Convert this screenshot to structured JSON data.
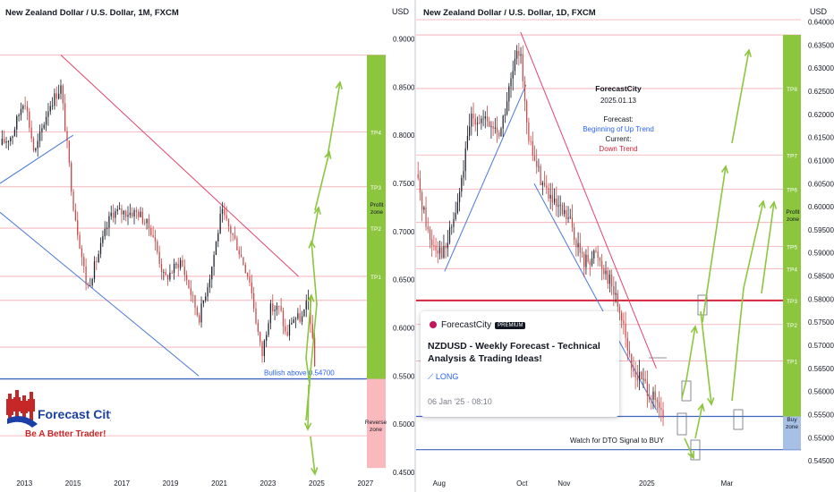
{
  "left_chart": {
    "title": "New Zealand Dollar / U.S. Dollar, 1M, FXCM",
    "currency": "USD",
    "y_ticks": [
      "0.90000",
      "0.85000",
      "0.80000",
      "0.75000",
      "0.70000",
      "0.65000",
      "0.60000",
      "0.55000",
      "0.50000",
      "0.45000"
    ],
    "x_ticks": [
      "2013",
      "2015",
      "2017",
      "2019",
      "2021",
      "2023",
      "2025",
      "2027"
    ],
    "annotation": "Bullish above 0.54700",
    "tp_labels": [
      "TP4",
      "TP3",
      "TP2",
      "TP1"
    ],
    "profit_zone_label": "Profit zone",
    "reverse_zone_label": "Reverse zone"
  },
  "right_chart": {
    "title": "New Zealand Dollar / U.S. Dollar, 1D, FXCM",
    "currency": "USD",
    "y_ticks": [
      "0.64000",
      "0.63500",
      "0.63000",
      "0.62500",
      "0.62000",
      "0.61500",
      "0.61000",
      "0.60500",
      "0.60000",
      "0.59500",
      "0.59000",
      "0.58500",
      "0.58000",
      "0.57500",
      "0.57000",
      "0.56500",
      "0.56000",
      "0.55500",
      "0.55000",
      "0.54500"
    ],
    "x_ticks": [
      "Aug",
      "Oct",
      "Nov",
      "2025",
      "Mar"
    ],
    "tp_labels": [
      "TP8",
      "TP7",
      "TP6",
      "TP5",
      "TP4",
      "TP3",
      "TP2",
      "TP1"
    ],
    "profit_zone_label": "Profit zone",
    "buy_zone_label": "Buy zone",
    "watch_note": "Watch for DTO Signal to BUY",
    "info": {
      "brand": "ForecastCity",
      "date": "2025.01.13",
      "forecast_label": "Forecast:",
      "forecast_value": "Beginning of Up Trend",
      "current_label": "Current:",
      "current_value": "Down Trend"
    }
  },
  "idea_card": {
    "author": "ForecastCity",
    "badge": "PREMIUM",
    "title": "NZDUSD - Weekly Forecast - Technical Analysis & Trading Ideas!",
    "direction": "LONG",
    "date": "06 Jan '25 · 08:10"
  },
  "logo": {
    "name": "Forecast City",
    "tagline": "Be A Better Trader!"
  },
  "colors": {
    "bull": "#1e222d",
    "bear": "#c84a4a",
    "profit_zone": "#8cc63f",
    "reverse_zone": "#f9b9bd",
    "buy_zone": "#a7c0e6",
    "forecast_arrow": "#8cc63f",
    "trend_red": "#e0446d",
    "trend_blue": "#4a78d6",
    "support_line": "#3f64c0",
    "resistance_line": "#d7243a"
  },
  "chart_data": [
    {
      "type": "line",
      "title": "New Zealand Dollar / U.S. Dollar, 1M, FXCM",
      "ylim": [
        0.45,
        0.92
      ],
      "x_range": [
        "2012-01",
        "2027-11"
      ],
      "horizontal_levels": [
        0.547,
        0.58,
        0.6285,
        0.6535,
        0.7035,
        0.7465,
        0.8033,
        0.8833,
        0.488
      ],
      "trendlines": [
        {
          "name": "downtrend",
          "from": [
            "2014-07",
            0.8833
          ],
          "to": [
            "2024-04",
            0.6535
          ]
        },
        {
          "name": "channel_low",
          "from": [
            "2012-01",
            0.72
          ],
          "to": [
            "2020-03",
            0.55
          ]
        },
        {
          "name": "up_support",
          "from": [
            "2012-01",
            0.75
          ],
          "to": [
            "2015-01",
            0.8
          ]
        }
      ],
      "series": [
        {
          "values": [
            {
              "x": "2012-01",
              "close": 0.79
            },
            {
              "x": "2012-07",
              "close": 0.8
            },
            {
              "x": "2013-01",
              "close": 0.84
            },
            {
              "x": "2013-06",
              "close": 0.78
            },
            {
              "x": "2014-01",
              "close": 0.83
            },
            {
              "x": "2014-07",
              "close": 0.85
            },
            {
              "x": "2015-01",
              "close": 0.73
            },
            {
              "x": "2015-08",
              "close": 0.64
            },
            {
              "x": "2016-02",
              "close": 0.68
            },
            {
              "x": "2016-08",
              "close": 0.72
            },
            {
              "x": "2017-02",
              "close": 0.72
            },
            {
              "x": "2017-09",
              "close": 0.72
            },
            {
              "x": "2018-04",
              "close": 0.7
            },
            {
              "x": "2018-10",
              "close": 0.65
            },
            {
              "x": "2019-06",
              "close": 0.67
            },
            {
              "x": "2020-03",
              "close": 0.61
            },
            {
              "x": "2020-09",
              "close": 0.66
            },
            {
              "x": "2021-02",
              "close": 0.72
            },
            {
              "x": "2021-09",
              "close": 0.69
            },
            {
              "x": "2022-04",
              "close": 0.65
            },
            {
              "x": "2022-10",
              "close": 0.57
            },
            {
              "x": "2023-02",
              "close": 0.62
            },
            {
              "x": "2023-07",
              "close": 0.62
            },
            {
              "x": "2023-10",
              "close": 0.59
            },
            {
              "x": "2024-01",
              "close": 0.61
            },
            {
              "x": "2024-06",
              "close": 0.61
            },
            {
              "x": "2024-09",
              "close": 0.63
            },
            {
              "x": "2024-12",
              "close": 0.56
            }
          ]
        }
      ]
    },
    {
      "type": "line",
      "title": "New Zealand Dollar / U.S. Dollar, 1D, FXCM",
      "ylim": [
        0.5425,
        0.6405
      ],
      "x_range": [
        "2024-07-15",
        "2025-04-10"
      ],
      "horizontal_levels": [
        0.6405,
        0.6372,
        0.6256,
        0.6112,
        0.6038,
        0.5966,
        0.5914,
        0.5866,
        0.5797,
        0.5745,
        0.5666,
        0.5546,
        0.5474
      ],
      "trendlines": [
        {
          "name": "red_down",
          "from": [
            "2024-09-30",
            0.6378
          ],
          "to": [
            "2025-01-08",
            0.565
          ]
        },
        {
          "name": "blue_up",
          "from": [
            "2024-08-05",
            0.586
          ],
          "to": [
            "2024-10-04",
            0.6264
          ]
        },
        {
          "name": "blue_down",
          "from": [
            "2024-10-10",
            0.605
          ],
          "to": [
            "2025-01-08",
            0.556
          ]
        }
      ],
      "series": [
        {
          "values": [
            {
              "x": "2024-07-15",
              "close": 0.607
            },
            {
              "x": "2024-07-25",
              "close": 0.593
            },
            {
              "x": "2024-08-05",
              "close": 0.59
            },
            {
              "x": "2024-08-15",
              "close": 0.601
            },
            {
              "x": "2024-08-25",
              "close": 0.62
            },
            {
              "x": "2024-09-05",
              "close": 0.618
            },
            {
              "x": "2024-09-15",
              "close": 0.616
            },
            {
              "x": "2024-09-25",
              "close": 0.63
            },
            {
              "x": "2024-09-30",
              "close": 0.635
            },
            {
              "x": "2024-10-05",
              "close": 0.615
            },
            {
              "x": "2024-10-15",
              "close": 0.606
            },
            {
              "x": "2024-10-25",
              "close": 0.6
            },
            {
              "x": "2024-11-05",
              "close": 0.597
            },
            {
              "x": "2024-11-15",
              "close": 0.588
            },
            {
              "x": "2024-11-25",
              "close": 0.59
            },
            {
              "x": "2024-12-05",
              "close": 0.584
            },
            {
              "x": "2024-12-15",
              "close": 0.575
            },
            {
              "x": "2024-12-20",
              "close": 0.565
            },
            {
              "x": "2024-12-30",
              "close": 0.562
            },
            {
              "x": "2025-01-08",
              "close": 0.557
            },
            {
              "x": "2025-01-13",
              "close": 0.554
            }
          ]
        }
      ]
    }
  ]
}
